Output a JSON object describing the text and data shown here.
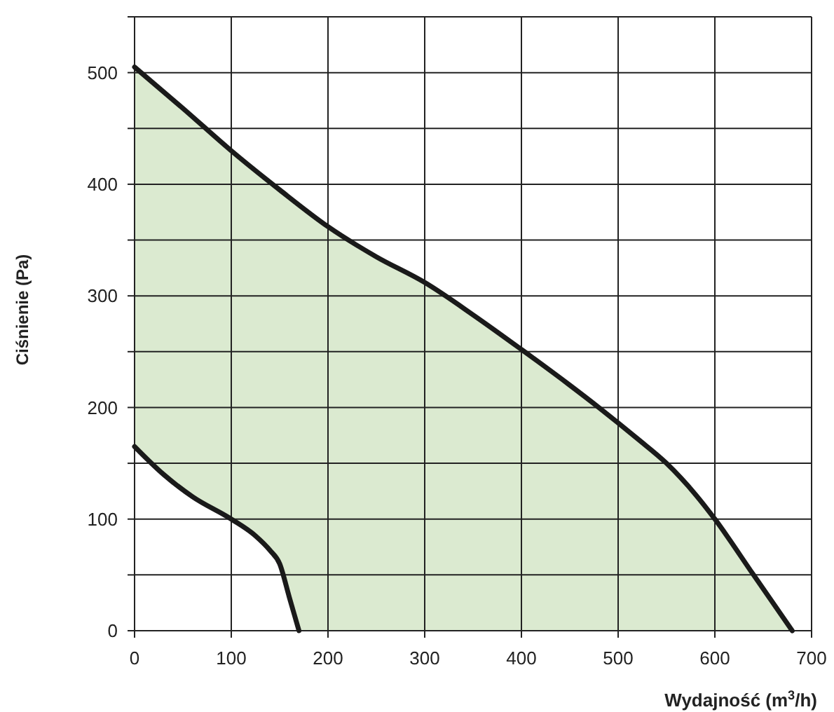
{
  "chart_data": {
    "type": "area",
    "xlabel": "Wydajność (m$^{3}$/h)",
    "ylabel": "Ciśnienie (Pa)",
    "xlim": [
      0,
      700
    ],
    "xticks": [
      0,
      100,
      200,
      300,
      400,
      500,
      600,
      700
    ],
    "ylim": [
      0,
      550
    ],
    "yticks": [
      0,
      {
        "value": 50,
        "label": null
      },
      100,
      {
        "value": 150,
        "label": null
      },
      200,
      {
        "value": 250,
        "label": null
      },
      300,
      {
        "value": 350,
        "label": null
      },
      400,
      {
        "value": 450,
        "label": null
      },
      500,
      {
        "value": 550,
        "label": null
      }
    ],
    "grid": true,
    "series": [
      {
        "color": "#1a1a1a",
        "x": [
          0,
          50,
          100,
          150,
          200,
          250,
          300,
          350,
          400,
          450,
          480,
          520,
          550,
          580,
          600,
          640,
          680
        ],
        "values": [
          505,
          468,
          430,
          395,
          362,
          335,
          312,
          283,
          252,
          220,
          200,
          172,
          150,
          122,
          100,
          50,
          0
        ]
      },
      {
        "color": "#1a1a1a",
        "x": [
          0,
          30,
          60,
          100,
          125,
          140,
          150,
          160,
          170
        ],
        "values": [
          165,
          140,
          120,
          100,
          85,
          72,
          60,
          30,
          0
        ]
      }
    ]
  }
}
